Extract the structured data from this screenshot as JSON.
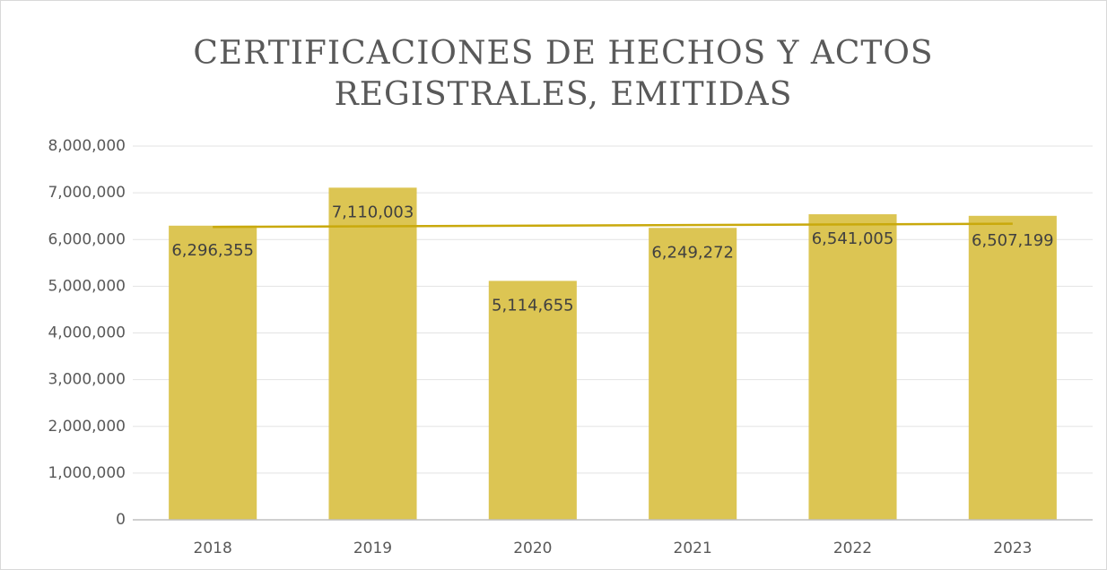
{
  "chart_data": {
    "type": "bar",
    "title": [
      "CERTIFICACIONES DE HECHOS Y ACTOS",
      "REGISTRALES, EMITIDAS"
    ],
    "categories": [
      "2018",
      "2019",
      "2020",
      "2021",
      "2022",
      "2023"
    ],
    "values": [
      6296355,
      7110003,
      5114655,
      6249272,
      6541005,
      6507199
    ],
    "value_labels": [
      "6,296,355",
      "7,110,003",
      "5,114,655",
      "6,249,272",
      "6,541,005",
      "6,507,199"
    ],
    "color": "#dcc553",
    "trendline": "linear",
    "trendline_color": "#c9a90c",
    "ylim": [
      0,
      8000000
    ],
    "yticks": [
      0,
      {
        "value": 1000000,
        "label": "1,000,000"
      },
      {
        "value": 2000000,
        "label": "2,000,000"
      },
      {
        "value": 3000000,
        "label": "3,000,000"
      },
      {
        "value": 4000000,
        "label": "4,000,000"
      },
      {
        "value": 5000000,
        "label": "5,000,000"
      },
      {
        "value": 6000000,
        "label": "6,000,000"
      },
      {
        "value": 7000000,
        "label": "7,000,000"
      },
      {
        "value": 8000000,
        "label": "8,000,000"
      }
    ],
    "grid": true
  }
}
